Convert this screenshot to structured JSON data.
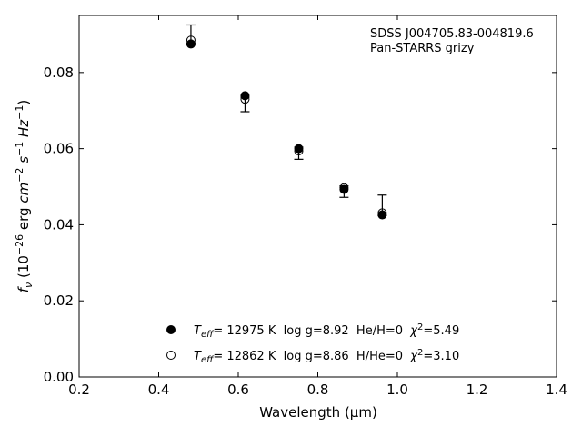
{
  "chart_data": {
    "type": "scatter",
    "xlabel": "Wavelength (μm)",
    "ylabel_parts": {
      "f": "f",
      "nu": "ν",
      "open": " (10",
      "exp26": "−26",
      "erg": " erg ",
      "cm": "cm",
      "expm2": "−2",
      "s": " s",
      "expm1a": "−1",
      "hz": " Hz",
      "expm1b": "−1",
      "close": ")"
    },
    "xlim": [
      0.2,
      1.4
    ],
    "ylim": [
      0.0,
      0.095
    ],
    "xticks": [
      "0.2",
      "0.4",
      "0.6",
      "0.8",
      "1.0",
      "1.2",
      "1.4"
    ],
    "yticks": [
      "0.00",
      "0.02",
      "0.04",
      "0.06",
      "0.08"
    ],
    "annotation": {
      "line1": "SDSS J004705.83-004819.6",
      "line2": "Pan-STARRS grizy"
    },
    "observed": {
      "x": [
        0.481,
        0.617,
        0.752,
        0.866,
        0.962
      ],
      "y_low": [
        0.0878,
        0.0697,
        0.0572,
        0.0472,
        0.0424
      ],
      "y_high": [
        0.0925,
        0.0735,
        0.0604,
        0.0502,
        0.0478
      ]
    },
    "series": [
      {
        "marker": "filled",
        "legend": {
          "T": "T",
          "eff": "eff",
          "rest": "= 12975 K  log g=8.92  He/H=0  ",
          "chi": "χ",
          "sq": "2",
          "chival": "=5.49"
        },
        "x": [
          0.481,
          0.617,
          0.752,
          0.866,
          0.962
        ],
        "y": [
          0.0875,
          0.0739,
          0.06,
          0.0493,
          0.0426
        ]
      },
      {
        "marker": "open",
        "legend": {
          "T": "T",
          "eff": "eff",
          "rest": "= 12862 K  log g=8.86  H/He=0  ",
          "chi": "χ",
          "sq": "2",
          "chival": "=3.10"
        },
        "x": [
          0.481,
          0.617,
          0.752,
          0.866,
          0.962
        ],
        "y": [
          0.0885,
          0.073,
          0.0594,
          0.0497,
          0.0431
        ]
      }
    ]
  }
}
